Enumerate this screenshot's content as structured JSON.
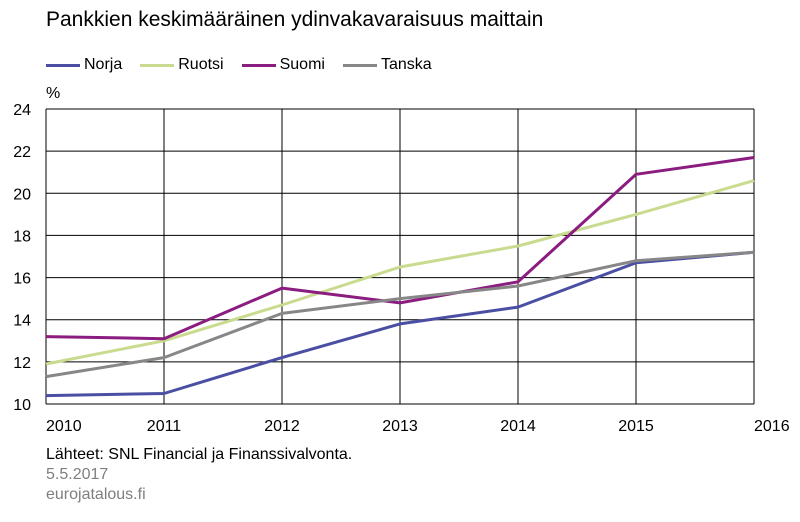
{
  "title": "Pankkien keskimääräinen ydinvakavaraisuus maittain",
  "unit": "%",
  "source": "Lähteet: SNL Financial ja Finanssivalvonta.",
  "date": "5.5.2017",
  "site": "eurojatalous.fi",
  "colors": {
    "grid": "#000000",
    "Norja": "#4a4fa3",
    "Ruotsi": "#c9db8e",
    "Suomi": "#8b1c80",
    "Tanska": "#878787"
  },
  "chart_data": {
    "type": "line",
    "title": "Pankkien keskimääräinen ydinvakavaraisuus maittain",
    "ylabel": "%",
    "x": [
      2010,
      2011,
      2012,
      2013,
      2014,
      2015,
      2016
    ],
    "xticks": [
      "2010",
      "2011",
      "2012",
      "2013",
      "2014",
      "2015",
      "2016"
    ],
    "yticks": [
      "10",
      "12",
      "14",
      "16",
      "18",
      "20",
      "22",
      "24"
    ],
    "ylim": [
      10,
      24
    ],
    "grid": true,
    "legend_position": "top-left",
    "series": [
      {
        "name": "Norja",
        "values": [
          10.4,
          10.5,
          12.2,
          13.8,
          14.6,
          16.7,
          17.2
        ]
      },
      {
        "name": "Ruotsi",
        "values": [
          11.9,
          13.0,
          14.7,
          16.5,
          17.5,
          19.0,
          20.6
        ]
      },
      {
        "name": "Suomi",
        "values": [
          13.2,
          13.1,
          15.5,
          14.8,
          15.8,
          20.9,
          21.7
        ]
      },
      {
        "name": "Tanska",
        "values": [
          11.3,
          12.2,
          14.3,
          15.0,
          15.6,
          16.8,
          17.2
        ]
      }
    ]
  }
}
